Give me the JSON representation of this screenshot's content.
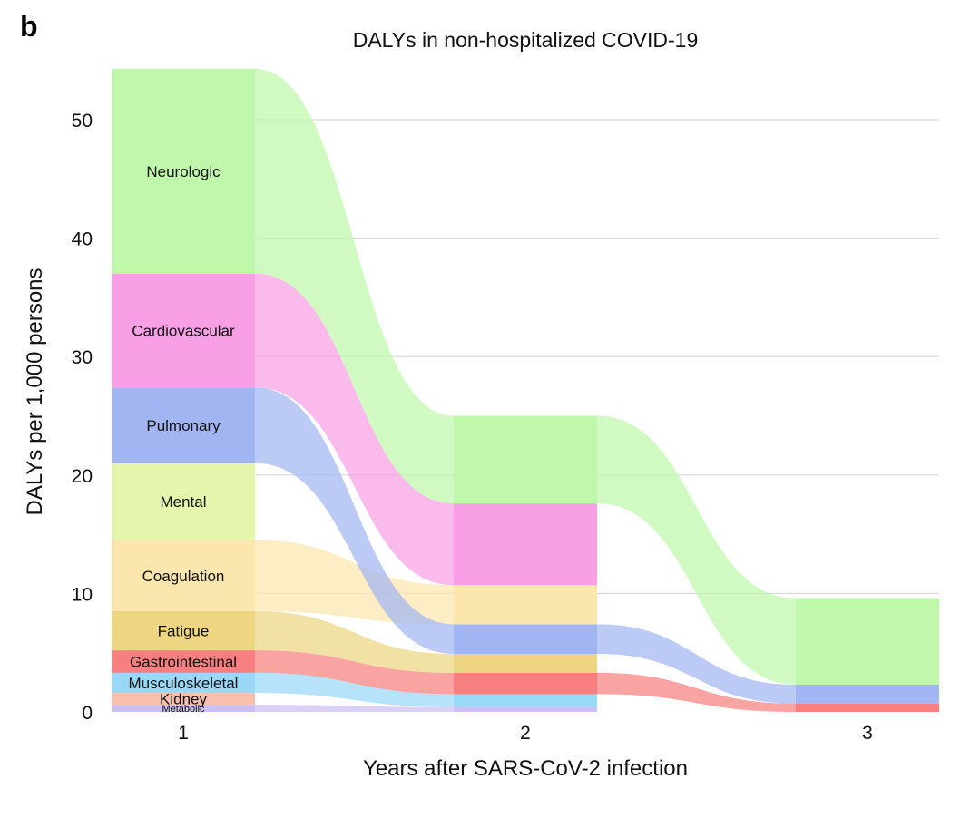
{
  "panel_label": "b",
  "chart_data": {
    "type": "area",
    "subtype": "alluvial-stacked",
    "title": "DALYs in non-hospitalized COVID-19",
    "xlabel": "Years after SARS-CoV-2 infection",
    "ylabel": "DALYs per 1,000 persons",
    "ylim": [
      0,
      54
    ],
    "yticks": [
      0,
      10,
      20,
      30,
      40,
      50
    ],
    "x": [
      1,
      2,
      3
    ],
    "xtick_labels": [
      "1",
      "2",
      "3"
    ],
    "grid": true,
    "series": [
      {
        "name": "Metabolic",
        "color": "#cdbff2",
        "values": [
          0.6,
          0.4,
          0
        ]
      },
      {
        "name": "Kidney",
        "color": "#f9bfae",
        "values": [
          1.0,
          0,
          0
        ]
      },
      {
        "name": "Musculoskeletal",
        "color": "#9ad8f7",
        "values": [
          1.7,
          1.1,
          0
        ]
      },
      {
        "name": "Gastrointestinal",
        "color": "#f87f7f",
        "values": [
          1.9,
          1.8,
          0.7
        ]
      },
      {
        "name": "Fatigue",
        "color": "#edd581",
        "values": [
          3.3,
          1.6,
          0
        ]
      },
      {
        "name": "Coagulation",
        "color": "#fbe6ad",
        "values": [
          6.0,
          0,
          0
        ]
      },
      {
        "name": "Mental",
        "color": "#e4f6ab",
        "values": [
          6.5,
          0,
          0
        ]
      },
      {
        "name": "Pulmonary",
        "color": "#a2b5f3",
        "values": [
          6.4,
          2.5,
          1.6
        ]
      },
      {
        "name": "Cardiovascular",
        "color": "#f99fe5",
        "values": [
          9.6,
          6.9,
          0
        ]
      },
      {
        "name": "Neurologic",
        "color": "#bff8aa",
        "values": [
          17.3,
          7.4,
          7.3
        ]
      }
    ],
    "band_connections": [
      {
        "series": "Neurologic",
        "from_x": 1,
        "to_x": 2
      },
      {
        "series": "Neurologic",
        "from_x": 2,
        "to_x": 3
      },
      {
        "series": "Cardiovascular",
        "from_x": 1,
        "to_x": 2
      },
      {
        "series": "Pulmonary",
        "from_x": 1,
        "to_x": 2
      },
      {
        "series": "Pulmonary",
        "from_x": 2,
        "to_x": 3
      },
      {
        "series": "Coagulation",
        "from_x": 1,
        "to_x": 2,
        "to_series": "Coagulation-2"
      },
      {
        "series": "Fatigue",
        "from_x": 1,
        "to_x": 2
      },
      {
        "series": "Gastrointestinal",
        "from_x": 1,
        "to_x": 2
      },
      {
        "series": "Gastrointestinal",
        "from_x": 2,
        "to_x": 3
      },
      {
        "series": "Musculoskeletal",
        "from_x": 1,
        "to_x": 2
      },
      {
        "series": "Metabolic",
        "from_x": 1,
        "to_x": 2
      }
    ],
    "year2_extra_segments": [
      {
        "name": "Coagulation-2",
        "color": "#fbe6ad",
        "values_note": "occupies range above Pulmonary",
        "value": 3.3
      }
    ]
  }
}
